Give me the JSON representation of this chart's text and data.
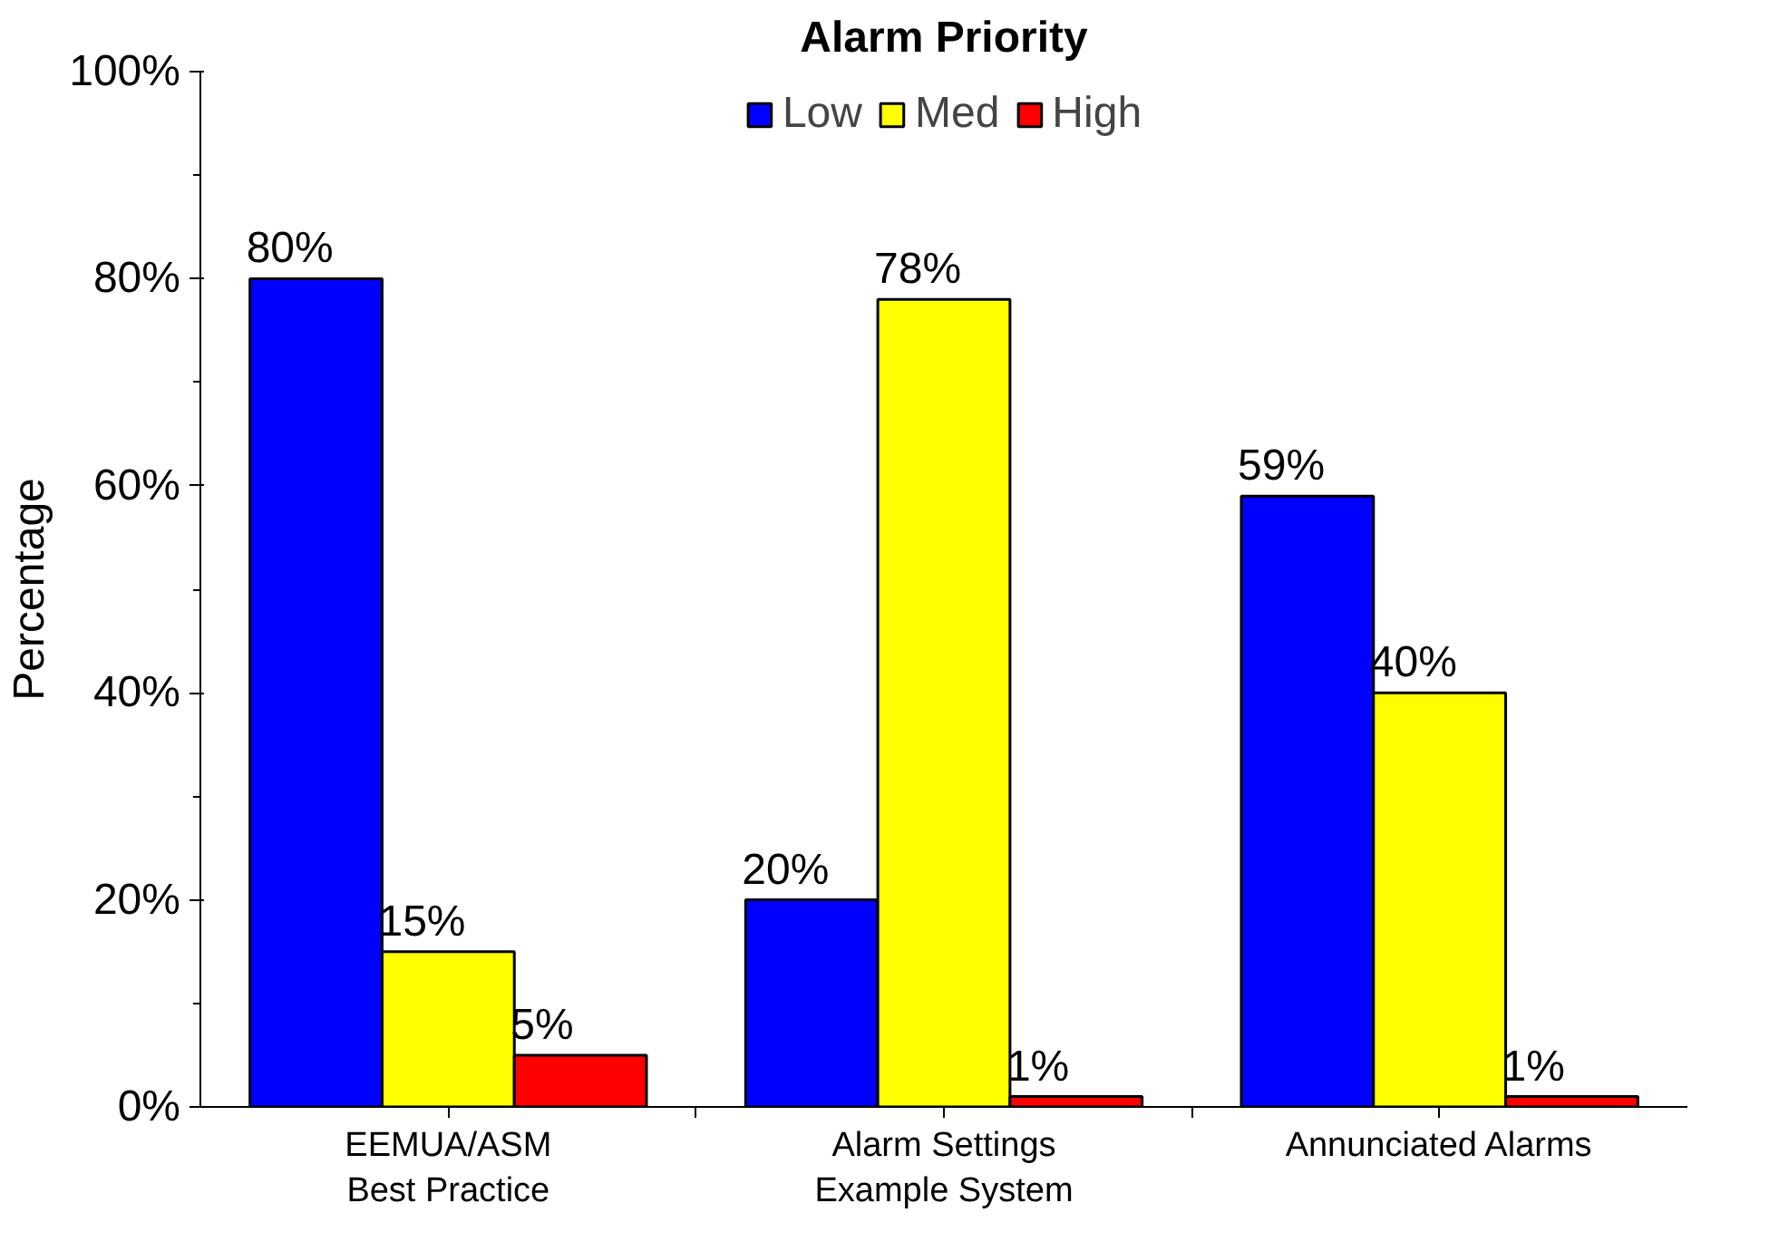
{
  "chart_data": {
    "type": "bar",
    "title": "Alarm Priority",
    "ylabel": "Percentage",
    "categories": [
      "EEMUA/ASM\nBest Practice",
      "Alarm Settings\nExample System",
      "Annunciated Alarms"
    ],
    "series": [
      {
        "name": "Low",
        "color": "#0000ff",
        "values": [
          80,
          20,
          59
        ],
        "value_labels": [
          "80%",
          "20%",
          "59%"
        ]
      },
      {
        "name": "Med",
        "color": "#ffff00",
        "values": [
          15,
          78,
          40
        ],
        "value_labels": [
          "15%",
          "78%",
          "40%"
        ]
      },
      {
        "name": "High",
        "color": "#ff0000",
        "values": [
          5,
          1,
          1
        ],
        "value_labels": [
          "5%",
          "1%",
          "1%"
        ]
      }
    ],
    "ylim": [
      0,
      100
    ],
    "yticks": [
      {
        "value": 0,
        "label": "0%"
      },
      {
        "value": 20,
        "label": "20%"
      },
      {
        "value": 40,
        "label": "40%"
      },
      {
        "value": 60,
        "label": "60%"
      },
      {
        "value": 80,
        "label": "80%"
      },
      {
        "value": 100,
        "label": "100%"
      }
    ],
    "grid": false,
    "legend": "top"
  }
}
